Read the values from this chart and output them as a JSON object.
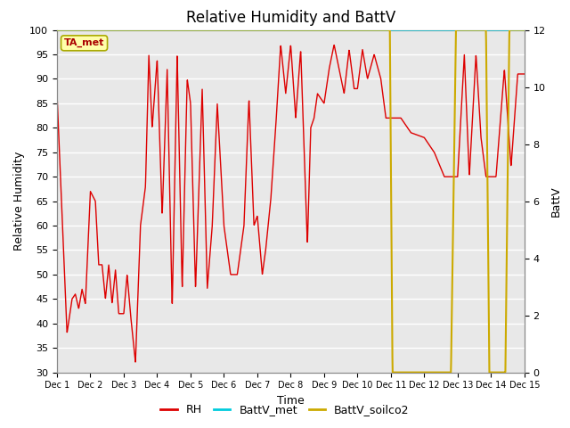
{
  "title": "Relative Humidity and BattV",
  "ylabel_left": "Relative Humidity",
  "ylabel_right": "BattV",
  "xlabel": "Time",
  "ylim_left": [
    30,
    100
  ],
  "ylim_right": [
    0,
    12
  ],
  "yticks_left": [
    30,
    35,
    40,
    45,
    50,
    55,
    60,
    65,
    70,
    75,
    80,
    85,
    90,
    95,
    100
  ],
  "yticks_right": [
    0,
    2,
    4,
    6,
    8,
    10,
    12
  ],
  "fig_bg_color": "#ffffff",
  "plot_bg_color": "#e8e8e8",
  "rh_color": "#dd0000",
  "battv_met_color": "#00ccdd",
  "battv_soilco2_color": "#ccaa00",
  "annotation_text": "TA_met",
  "annotation_color": "#aa0000",
  "annotation_bg": "#ffffaa",
  "annotation_edge": "#aaaa00",
  "grid_color": "white",
  "title_fontsize": 12,
  "label_fontsize": 9,
  "tick_fontsize": 8
}
